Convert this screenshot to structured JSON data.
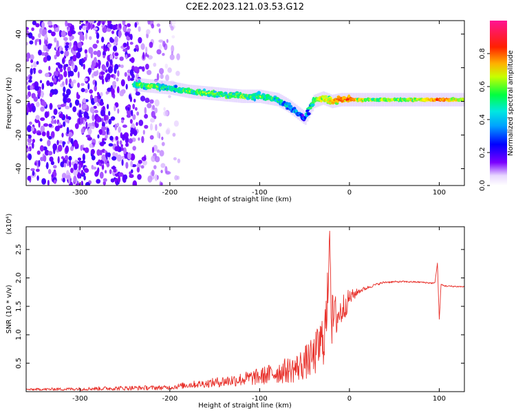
{
  "figure": {
    "title": "C2E2.2023.121.03.53.G12"
  },
  "chart_data": [
    {
      "type": "heatmap",
      "title": "C2E2.2023.121.03.53.G12",
      "xlabel": "Height of straight line (km)",
      "ylabel": "Frequency (Hz)",
      "xlim": [
        -360,
        128
      ],
      "ylim": [
        -50,
        48
      ],
      "x_ticks": [
        -300,
        -200,
        -100,
        0,
        100
      ],
      "y_ticks": [
        -40,
        -20,
        0,
        20,
        40
      ],
      "grid": false,
      "colorbar": {
        "label": "Normalized spectral amplitude",
        "range": [
          0,
          1
        ],
        "ticks": [
          0.0,
          0.2,
          0.4,
          0.6,
          0.8
        ],
        "colors": [
          "#ffffff",
          "#7a00ff",
          "#0000ff",
          "#00c8ff",
          "#00ff60",
          "#ffff00",
          "#ff8000",
          "#ff0000",
          "#ff1493"
        ]
      },
      "noise_region": {
        "x_range": [
          -360,
          -190
        ],
        "y_range": [
          -50,
          48
        ]
      },
      "signal_ridge": {
        "x": [
          -240,
          -220,
          -200,
          -180,
          -160,
          -140,
          -120,
          -100,
          -80,
          -70,
          -60,
          -50,
          -40,
          -30,
          -20,
          -10,
          0,
          20,
          40,
          60,
          80,
          100,
          128
        ],
        "freq_hz": [
          10,
          9,
          8,
          6,
          5,
          4,
          3,
          3,
          1,
          -2,
          -6,
          -10,
          0,
          2,
          0,
          1,
          1,
          1,
          1,
          1,
          1,
          1,
          1
        ],
        "amplitude": [
          0.5,
          0.55,
          0.45,
          0.5,
          0.55,
          0.5,
          0.55,
          0.5,
          0.45,
          0.4,
          0.35,
          0.3,
          0.55,
          0.6,
          0.7,
          0.75,
          0.8,
          0.55,
          0.55,
          0.55,
          0.6,
          0.8,
          0.55
        ]
      }
    },
    {
      "type": "line",
      "xlabel": "Height of straight line (km)",
      "ylabel": "SNR (10 * v/v)",
      "y_multiplier": "(x10⁴)",
      "xlim": [
        -360,
        128
      ],
      "ylim": [
        0,
        2.9
      ],
      "x_ticks": [
        -300,
        -200,
        -100,
        0,
        100
      ],
      "y_ticks": [
        0.5,
        1.0,
        1.5,
        2.0,
        2.5
      ],
      "grid": false,
      "series": [
        {
          "color": "#e8302a",
          "x": [
            -360,
            -300,
            -250,
            -200,
            -180,
            -160,
            -140,
            -120,
            -100,
            -80,
            -60,
            -40,
            -30,
            -25,
            -22,
            -20,
            -15,
            -10,
            -5,
            0,
            10,
            20,
            30,
            40,
            60,
            80,
            95,
            98,
            100,
            102,
            105,
            110,
            128
          ],
          "y": [
            0.03,
            0.04,
            0.05,
            0.06,
            0.1,
            0.12,
            0.15,
            0.18,
            0.22,
            0.28,
            0.33,
            0.5,
            0.75,
            1.1,
            2.9,
            1.1,
            1.2,
            1.3,
            1.45,
            1.6,
            1.75,
            1.82,
            1.88,
            1.92,
            1.93,
            1.92,
            1.9,
            2.25,
            1.25,
            1.88,
            1.86,
            1.85,
            1.84
          ],
          "spread": [
            0.02,
            0.03,
            0.04,
            0.04,
            0.06,
            0.07,
            0.1,
            0.12,
            0.15,
            0.2,
            0.25,
            0.35,
            0.5,
            0.6,
            0.3,
            0.5,
            0.4,
            0.3,
            0.25,
            0.15,
            0.05,
            0.03,
            0.02,
            0.02,
            0.015,
            0.015,
            0.015,
            0.02,
            0.02,
            0.015,
            0.015,
            0.015,
            0.015
          ]
        }
      ]
    }
  ]
}
